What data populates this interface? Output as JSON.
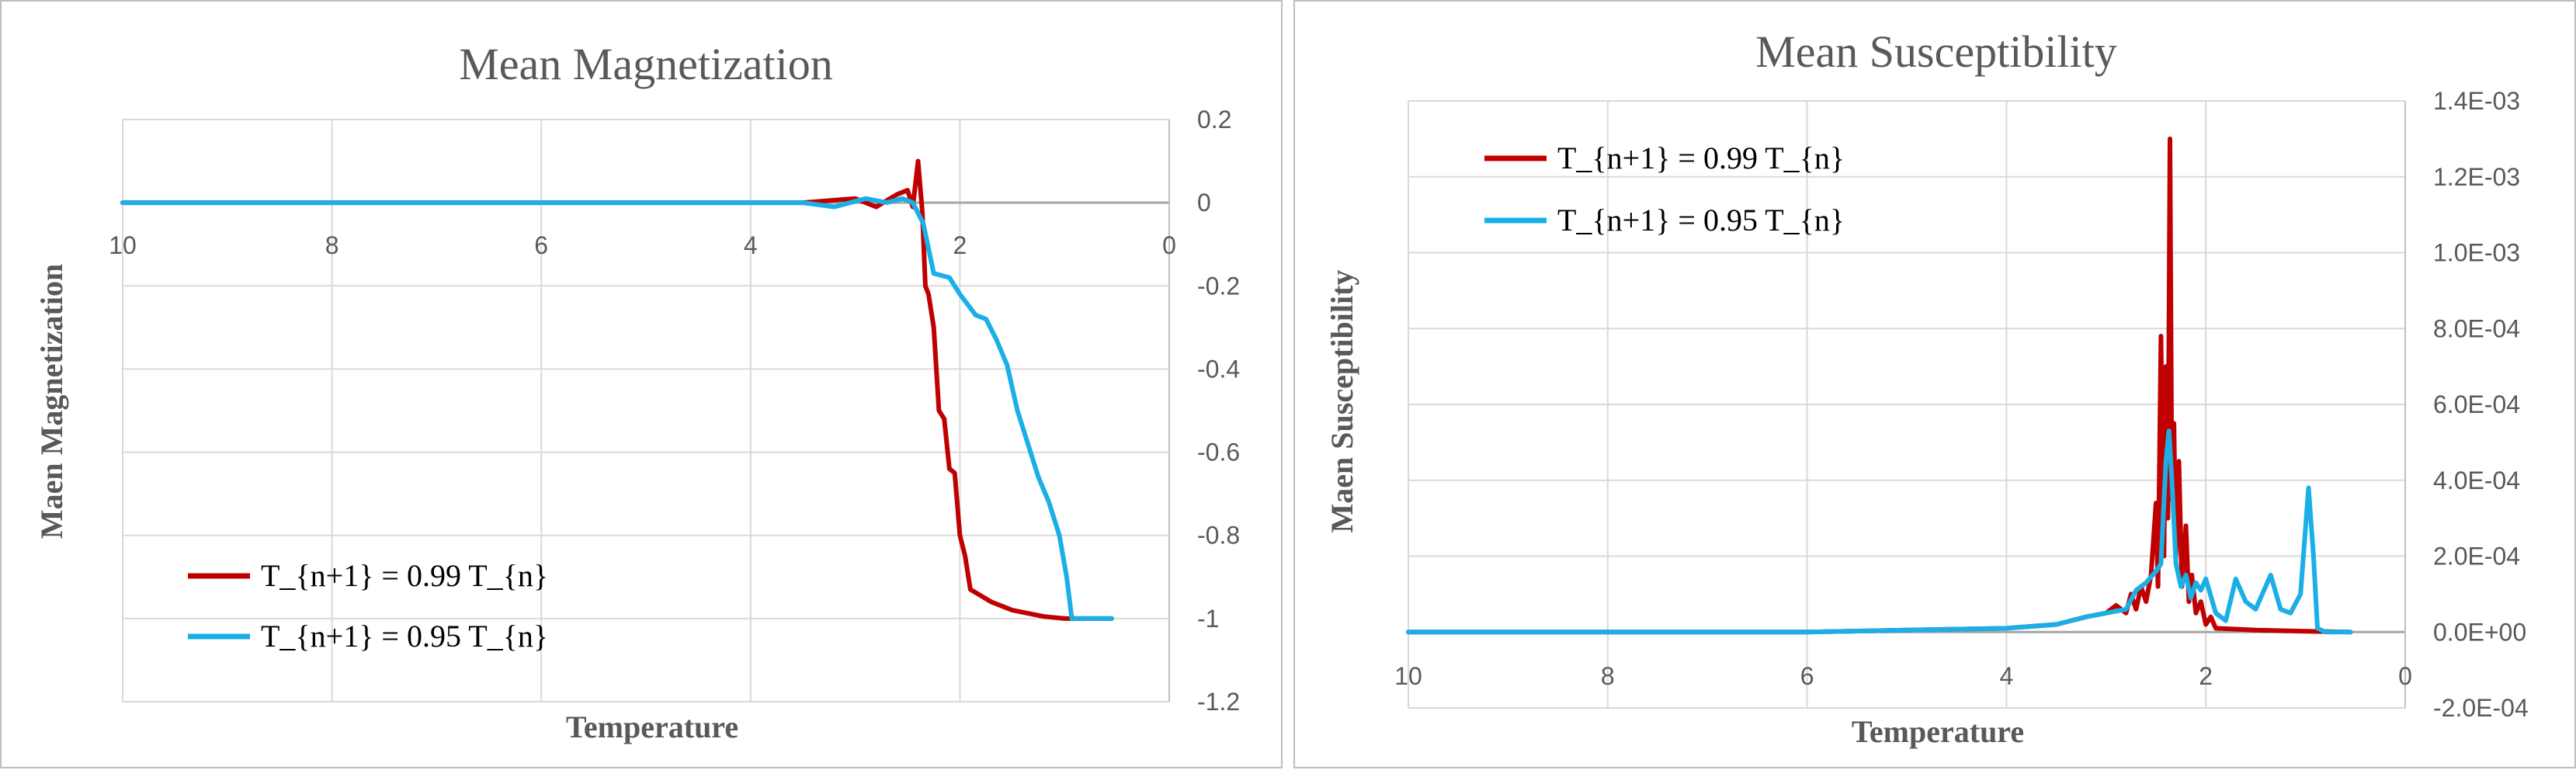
{
  "chart_data": [
    {
      "type": "line",
      "title": "Mean Magnetization",
      "xlabel": "Temperature",
      "ylabel": "Maen Magnetization",
      "x_reversed": true,
      "xlim": [
        0,
        10
      ],
      "ylim": [
        -1.2,
        0.2
      ],
      "xticks": [
        "10",
        "8",
        "6",
        "4",
        "2",
        "0"
      ],
      "yticks": [
        "0.2",
        "0",
        "-0.2",
        "-0.4",
        "-0.6",
        "-0.8",
        "-1",
        "-1.2"
      ],
      "legend_position": "bottom-left",
      "series": [
        {
          "name": "T_{n+1} = 0.99 T_{n}",
          "color": "#C00000",
          "points": [
            [
              10,
              0
            ],
            [
              6,
              0
            ],
            [
              4,
              0
            ],
            [
              3.5,
              0.0
            ],
            [
              3.0,
              0.01
            ],
            [
              2.8,
              -0.01
            ],
            [
              2.6,
              0.02
            ],
            [
              2.5,
              0.03
            ],
            [
              2.45,
              -0.01
            ],
            [
              2.4,
              0.1
            ],
            [
              2.36,
              -0.02
            ],
            [
              2.33,
              -0.2
            ],
            [
              2.3,
              -0.22
            ],
            [
              2.25,
              -0.3
            ],
            [
              2.2,
              -0.5
            ],
            [
              2.15,
              -0.52
            ],
            [
              2.1,
              -0.64
            ],
            [
              2.05,
              -0.65
            ],
            [
              2.0,
              -0.8
            ],
            [
              1.95,
              -0.85
            ],
            [
              1.9,
              -0.93
            ],
            [
              1.7,
              -0.96
            ],
            [
              1.5,
              -0.98
            ],
            [
              1.2,
              -0.995
            ],
            [
              1.0,
              -1.0
            ],
            [
              0.55,
              -1.0
            ]
          ]
        },
        {
          "name": "T_{n+1} = 0.95 T_{n}",
          "color": "#1AAFE6",
          "points": [
            [
              10,
              0
            ],
            [
              6,
              0
            ],
            [
              4,
              0
            ],
            [
              3.5,
              0.0
            ],
            [
              3.2,
              -0.01
            ],
            [
              2.9,
              0.01
            ],
            [
              2.7,
              0.0
            ],
            [
              2.55,
              0.01
            ],
            [
              2.45,
              0.0
            ],
            [
              2.35,
              -0.05
            ],
            [
              2.25,
              -0.17
            ],
            [
              2.1,
              -0.18
            ],
            [
              2.0,
              -0.22
            ],
            [
              1.85,
              -0.27
            ],
            [
              1.75,
              -0.28
            ],
            [
              1.65,
              -0.33
            ],
            [
              1.55,
              -0.39
            ],
            [
              1.45,
              -0.5
            ],
            [
              1.35,
              -0.58
            ],
            [
              1.25,
              -0.66
            ],
            [
              1.15,
              -0.72
            ],
            [
              1.05,
              -0.8
            ],
            [
              0.98,
              -0.9
            ],
            [
              0.93,
              -1.0
            ],
            [
              0.55,
              -1.0
            ]
          ]
        }
      ]
    },
    {
      "type": "line",
      "title": "Mean Susceptibility",
      "xlabel": "Temperature",
      "ylabel": "Maen Susceptibility",
      "x_reversed": true,
      "xlim": [
        0,
        10
      ],
      "ylim": [
        -0.0002,
        0.0014
      ],
      "xticks": [
        "10",
        "8",
        "6",
        "4",
        "2",
        "0"
      ],
      "yticks": [
        "1.4E-03",
        "1.2E-03",
        "1.0E-03",
        "8.0E-04",
        "6.0E-04",
        "4.0E-04",
        "2.0E-04",
        "0.0E+00",
        "-2.0E-04"
      ],
      "legend_position": "top-left",
      "series": [
        {
          "name": "T_{n+1} = 0.99 T_{n}",
          "color": "#C00000",
          "points": [
            [
              10,
              0
            ],
            [
              6,
              0
            ],
            [
              5,
              5e-06
            ],
            [
              4,
              1e-05
            ],
            [
              3.5,
              2e-05
            ],
            [
              3.2,
              4e-05
            ],
            [
              3.0,
              5e-05
            ],
            [
              2.9,
              7e-05
            ],
            [
              2.8,
              5e-05
            ],
            [
              2.75,
              0.0001
            ],
            [
              2.7,
              6e-05
            ],
            [
              2.65,
              0.00012
            ],
            [
              2.6,
              8e-05
            ],
            [
              2.55,
              0.00015
            ],
            [
              2.5,
              0.00034
            ],
            [
              2.48,
              0.00012
            ],
            [
              2.45,
              0.00078
            ],
            [
              2.42,
              0.0002
            ],
            [
              2.4,
              0.0007
            ],
            [
              2.38,
              0.0003
            ],
            [
              2.36,
              0.0013
            ],
            [
              2.34,
              0.00035
            ],
            [
              2.32,
              0.00055
            ],
            [
              2.3,
              0.0002
            ],
            [
              2.27,
              0.00045
            ],
            [
              2.24,
              0.00012
            ],
            [
              2.2,
              0.00028
            ],
            [
              2.17,
              8e-05
            ],
            [
              2.14,
              0.00015
            ],
            [
              2.1,
              5e-05
            ],
            [
              2.05,
              8e-05
            ],
            [
              2.0,
              2e-05
            ],
            [
              1.95,
              4e-05
            ],
            [
              1.9,
              1e-05
            ],
            [
              1.5,
              5e-06
            ],
            [
              1.0,
              2e-06
            ],
            [
              0.55,
              0
            ]
          ]
        },
        {
          "name": "T_{n+1} = 0.95 T_{n}",
          "color": "#1AAFE6",
          "points": [
            [
              10,
              0
            ],
            [
              6,
              0
            ],
            [
              5,
              5e-06
            ],
            [
              4,
              1e-05
            ],
            [
              3.5,
              2e-05
            ],
            [
              3.2,
              4e-05
            ],
            [
              3.0,
              5e-05
            ],
            [
              2.8,
              6e-05
            ],
            [
              2.7,
              0.00011
            ],
            [
              2.6,
              0.00013
            ],
            [
              2.5,
              0.00016
            ],
            [
              2.45,
              0.00018
            ],
            [
              2.4,
              0.00045
            ],
            [
              2.37,
              0.00053
            ],
            [
              2.34,
              0.0004
            ],
            [
              2.3,
              0.00018
            ],
            [
              2.25,
              0.00012
            ],
            [
              2.2,
              0.00015
            ],
            [
              2.15,
              9e-05
            ],
            [
              2.1,
              0.00013
            ],
            [
              2.05,
              0.00011
            ],
            [
              2.0,
              0.00014
            ],
            [
              1.9,
              5e-05
            ],
            [
              1.8,
              3e-05
            ],
            [
              1.7,
              0.00014
            ],
            [
              1.6,
              8e-05
            ],
            [
              1.5,
              6e-05
            ],
            [
              1.45,
              9e-05
            ],
            [
              1.35,
              0.00015
            ],
            [
              1.25,
              6e-05
            ],
            [
              1.15,
              5e-05
            ],
            [
              1.05,
              0.0001
            ],
            [
              0.97,
              0.00038
            ],
            [
              0.92,
              0.0002
            ],
            [
              0.88,
              1e-05
            ],
            [
              0.8,
              0
            ],
            [
              0.55,
              0
            ]
          ]
        }
      ]
    }
  ]
}
